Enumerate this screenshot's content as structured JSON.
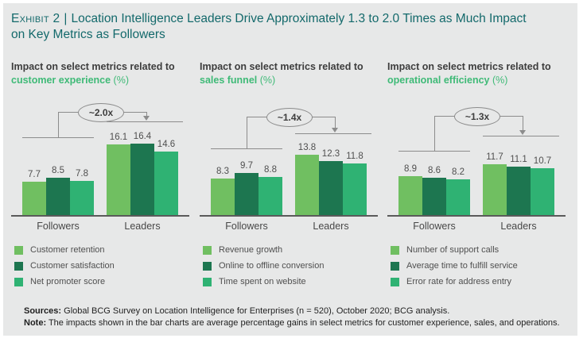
{
  "exhibit": {
    "label": "Exhibit 2",
    "separator": "|",
    "title_line1": "Location Intelligence Leaders Drive Approximately 1.3 to 2.0 Times as Much Impact",
    "title_line2": "on Key Metrics as Followers"
  },
  "colors": {
    "series": [
      "#70bf61",
      "#1d7650",
      "#2fb273"
    ],
    "title_teal": "#13696b",
    "heading_green": "#3fba77",
    "card_background": "#e7e8e8",
    "line_gray": "#8c8c8c"
  },
  "chart_data": [
    {
      "type": "bar",
      "heading_prefix": "Impact on select metrics related to",
      "heading_metric": "customer experience",
      "heading_suffix": "(%)",
      "title": "Impact on select metrics related to customer experience (%)",
      "annotation": "~2.0x",
      "categories": [
        "Followers",
        "Leaders"
      ],
      "series": [
        {
          "name": "Customer retention",
          "values": [
            7.7,
            16.1
          ]
        },
        {
          "name": "Customer satisfaction",
          "values": [
            8.5,
            16.4
          ]
        },
        {
          "name": "Net promoter score",
          "values": [
            7.8,
            14.6
          ]
        }
      ],
      "ylim": [
        0,
        18
      ],
      "grid": false,
      "legend_position": "bottom-left"
    },
    {
      "type": "bar",
      "heading_prefix": "Impact on select metrics related to",
      "heading_metric": "sales funnel",
      "heading_suffix": "(%)",
      "title": "Impact on select metrics related to sales funnel (%)",
      "annotation": "~1.4x",
      "categories": [
        "Followers",
        "Leaders"
      ],
      "series": [
        {
          "name": "Revenue growth",
          "values": [
            8.3,
            13.8
          ]
        },
        {
          "name": "Online to offline conversion",
          "values": [
            9.7,
            12.3
          ]
        },
        {
          "name": "Time spent on website",
          "values": [
            8.8,
            11.8
          ]
        }
      ],
      "ylim": [
        0,
        18
      ],
      "grid": false,
      "legend_position": "bottom-left"
    },
    {
      "type": "bar",
      "heading_prefix": "Impact on select metrics related to",
      "heading_metric": "operational efficiency",
      "heading_suffix": "(%)",
      "title": "Impact on select metrics related to operational efficiency (%)",
      "annotation": "~1.3x",
      "categories": [
        "Followers",
        "Leaders"
      ],
      "series": [
        {
          "name": "Number of support calls",
          "values": [
            8.9,
            11.7
          ]
        },
        {
          "name": "Average time to fulfill service",
          "values": [
            8.6,
            11.1
          ]
        },
        {
          "name": "Error rate for address entry",
          "values": [
            8.2,
            10.7
          ]
        }
      ],
      "ylim": [
        0,
        18
      ],
      "grid": false,
      "legend_position": "bottom-left"
    }
  ],
  "footer": {
    "sources_label": "Sources:",
    "sources_text": " Global BCG Survey on Location Intelligence for Enterprises (n = 520), October 2020; BCG analysis.",
    "note_label": "Note:",
    "note_text": " The impacts shown in the bar charts are average percentage gains in select metrics for customer experience, sales, and operations."
  }
}
